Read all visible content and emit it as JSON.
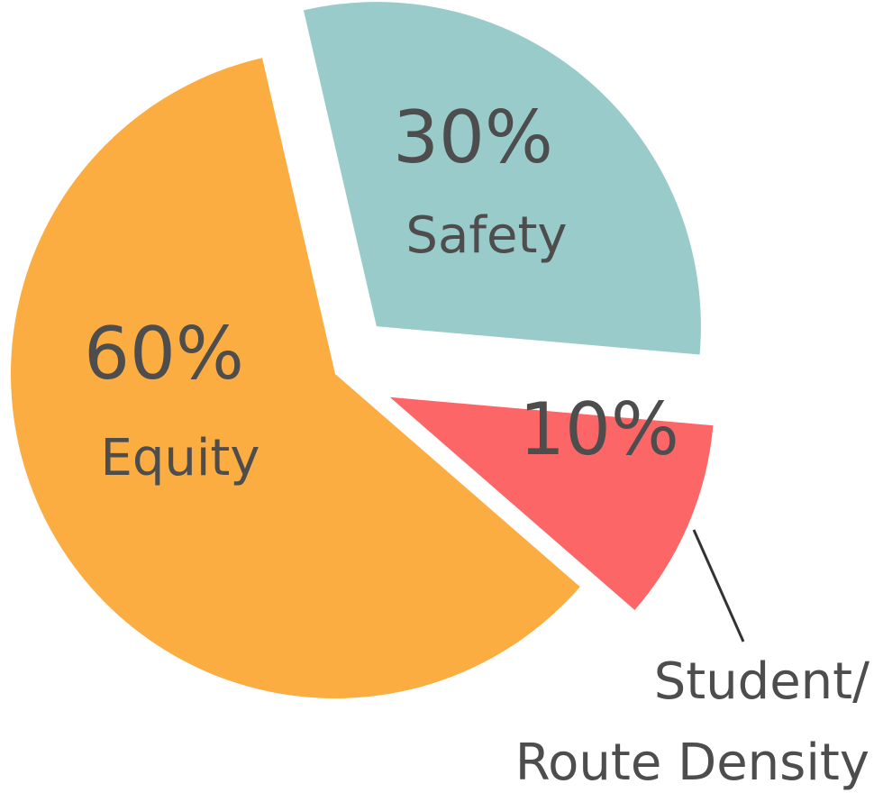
{
  "chart_data": {
    "type": "pie",
    "categories": [
      "Safety",
      "Student/\nRoute Density",
      "Equity"
    ],
    "values": [
      30,
      10,
      60
    ],
    "value_labels": [
      "30%",
      "10%",
      "60%"
    ],
    "colors": [
      "#99cbcb",
      "#fd6667",
      "#fbad42"
    ]
  }
}
